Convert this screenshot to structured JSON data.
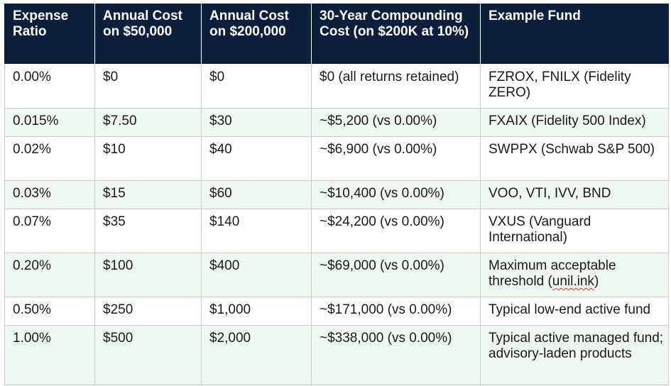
{
  "table": {
    "headers": [
      "Expense Ratio",
      "Annual Cost on $50,000",
      "Annual Cost on $200,000",
      "30-Year Compounding Cost (on $200K at 10%)",
      "Example Fund"
    ],
    "rows": [
      {
        "ratio": "0.00%",
        "cost_50k": "$0",
        "cost_200k": "$0",
        "compounding": "$0 (all returns retained)",
        "fund": "FZROX, FNILX (Fidelity ZERO)"
      },
      {
        "ratio": "0.015%",
        "cost_50k": "$7.50",
        "cost_200k": "$30",
        "compounding": "~$5,200 (vs 0.00%)",
        "fund": "FXAIX (Fidelity 500 Index)"
      },
      {
        "ratio": "0.02%",
        "cost_50k": "$10",
        "cost_200k": "$40",
        "compounding": "~$6,900 (vs 0.00%)",
        "fund": "SWPPX (Schwab S&P 500)"
      },
      {
        "ratio": "0.03%",
        "cost_50k": "$15",
        "cost_200k": "$60",
        "compounding": "~$10,400 (vs 0.00%)",
        "fund": "VOO, VTI, IVV, BND"
      },
      {
        "ratio": "0.07%",
        "cost_50k": "$35",
        "cost_200k": "$140",
        "compounding": "~$24,200 (vs 0.00%)",
        "fund": "VXUS (Vanguard International)"
      },
      {
        "ratio": "0.20%",
        "cost_50k": "$100",
        "cost_200k": "$400",
        "compounding": "~$69,000 (vs 0.00%)",
        "fund": "Maximum acceptable threshold (",
        "fund_link": "unil.ink",
        "fund_suffix": ")"
      },
      {
        "ratio": "0.50%",
        "cost_50k": "$250",
        "cost_200k": "$1,000",
        "compounding": "~$171,000 (vs 0.00%)",
        "fund": "Typical low-end active fund"
      },
      {
        "ratio": "1.00%",
        "cost_50k": "$500",
        "cost_200k": "$2,000",
        "compounding": "~$338,000 (vs 0.00%)",
        "fund": "Typical active managed fund; advisory-laden products"
      }
    ]
  }
}
